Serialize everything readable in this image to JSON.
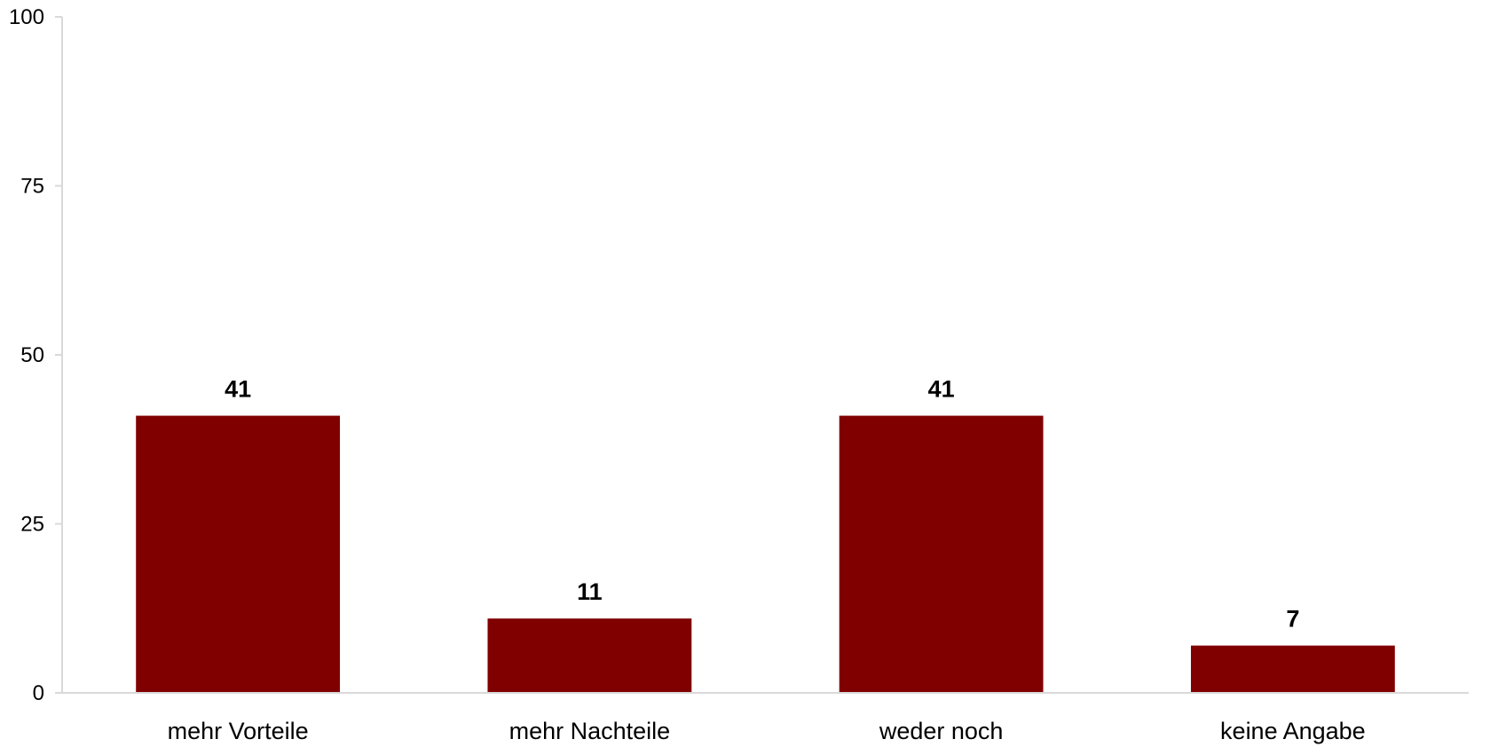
{
  "chart_data": {
    "type": "bar",
    "title": "",
    "xlabel": "",
    "ylabel": "",
    "categories": [
      "mehr Vorteile",
      "mehr Nachteile",
      "weder noch",
      "keine Angabe"
    ],
    "values": [
      41,
      11,
      41,
      7
    ],
    "data_labels": [
      "41",
      "11",
      "41",
      "7"
    ],
    "ylim": [
      0,
      100
    ],
    "yticks": [
      0,
      25,
      50,
      75,
      100
    ],
    "ytick_labels": [
      "0",
      "25",
      "50",
      "75",
      "100"
    ],
    "grid": false,
    "legend": "none",
    "bar_color": "#800000",
    "axis_color": "#d9d9d9"
  }
}
